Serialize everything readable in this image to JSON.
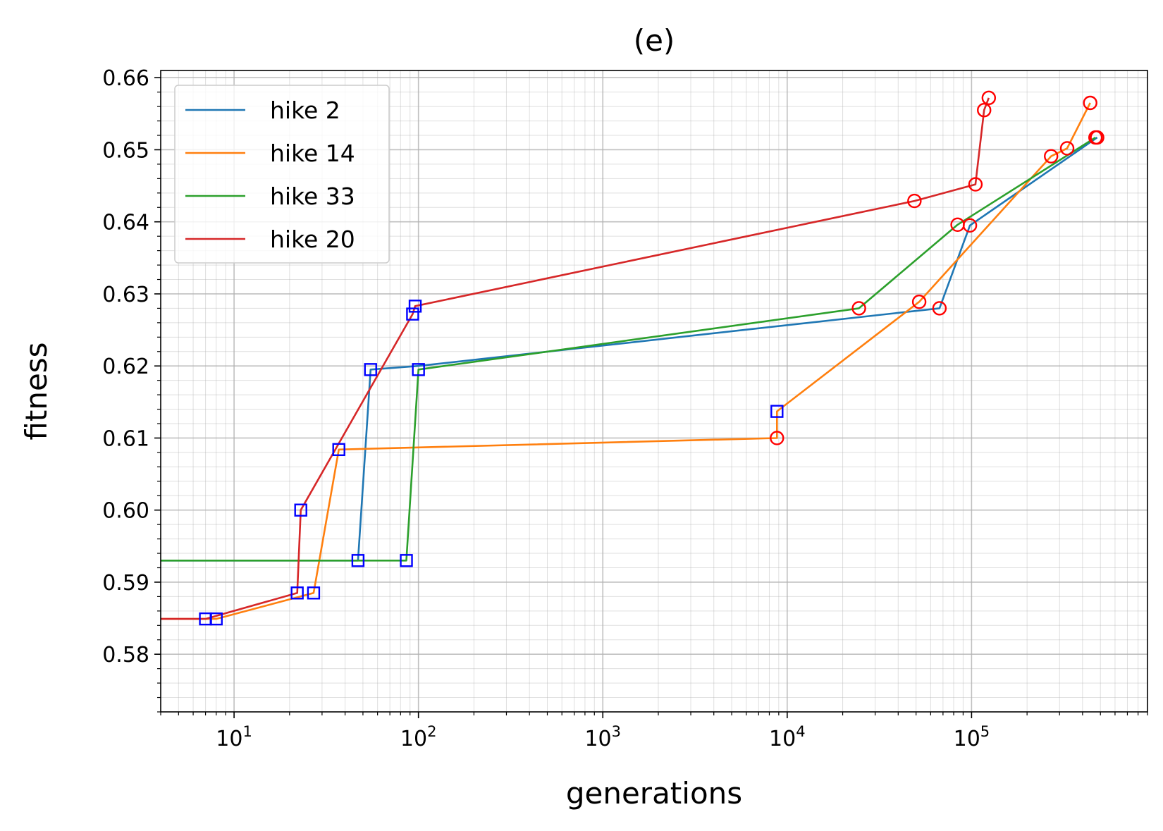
{
  "chart_data": {
    "type": "line",
    "title": "(e)",
    "xlabel": "generations",
    "ylabel": "fitness",
    "xscale": "log",
    "xlim": [
      4,
      900000
    ],
    "ylim": [
      0.572,
      0.661
    ],
    "grid": true,
    "legend_position": "top-left",
    "x_tick_labels": [
      {
        "value": 10,
        "base": "10",
        "exp": "1"
      },
      {
        "value": 100,
        "base": "10",
        "exp": "2"
      },
      {
        "value": 1000,
        "base": "10",
        "exp": "3"
      },
      {
        "value": 10000,
        "base": "10",
        "exp": "4"
      },
      {
        "value": 100000,
        "base": "10",
        "exp": "5"
      }
    ],
    "y_ticks": [
      0.58,
      0.59,
      0.6,
      0.61,
      0.62,
      0.63,
      0.64,
      0.65,
      0.66
    ],
    "y_tick_labels": [
      "0.58",
      "0.59",
      "0.60",
      "0.61",
      "0.62",
      "0.63",
      "0.64",
      "0.65",
      "0.66"
    ],
    "marker_colors": {
      "square": "#0000ff",
      "circle": "#ff0000"
    },
    "series": [
      {
        "name": "hike 2",
        "color": "#1f77b4",
        "start_fitness": 0.593,
        "points": [
          {
            "x": 47,
            "y": 0.593,
            "m": "square"
          },
          {
            "x": 55,
            "y": 0.6195,
            "m": "square"
          },
          {
            "x": 100,
            "y": 0.62,
            "m": "none"
          },
          {
            "x": 67000,
            "y": 0.628,
            "m": "circle"
          },
          {
            "x": 98000,
            "y": 0.6395,
            "m": "circle"
          },
          {
            "x": 480000,
            "y": 0.6517,
            "m": "circle"
          }
        ]
      },
      {
        "name": "hike 14",
        "color": "#ff7f0e",
        "start_fitness": 0.5849,
        "points": [
          {
            "x": 8,
            "y": 0.5849,
            "m": "square"
          },
          {
            "x": 27,
            "y": 0.5885,
            "m": "square"
          },
          {
            "x": 37,
            "y": 0.6084,
            "m": "square"
          },
          {
            "x": 8800,
            "y": 0.61,
            "m": "circle"
          },
          {
            "x": 8800,
            "y": 0.6137,
            "m": "square"
          },
          {
            "x": 52000,
            "y": 0.6289,
            "m": "circle"
          },
          {
            "x": 270000,
            "y": 0.6491,
            "m": "circle"
          },
          {
            "x": 330000,
            "y": 0.6502,
            "m": "circle"
          },
          {
            "x": 440000,
            "y": 0.6565,
            "m": "circle"
          }
        ]
      },
      {
        "name": "hike 33",
        "color": "#2ca02c",
        "start_fitness": 0.593,
        "points": [
          {
            "x": 86,
            "y": 0.593,
            "m": "square"
          },
          {
            "x": 100,
            "y": 0.6195,
            "m": "square"
          },
          {
            "x": 24500,
            "y": 0.628,
            "m": "circle"
          },
          {
            "x": 84000,
            "y": 0.6396,
            "m": "circle"
          },
          {
            "x": 470000,
            "y": 0.6517,
            "m": "circle"
          }
        ]
      },
      {
        "name": "hike 20",
        "color": "#d62728",
        "start_fitness": 0.5849,
        "points": [
          {
            "x": 7,
            "y": 0.5849,
            "m": "square"
          },
          {
            "x": 22,
            "y": 0.5885,
            "m": "square"
          },
          {
            "x": 23,
            "y": 0.6,
            "m": "square"
          },
          {
            "x": 93,
            "y": 0.6272,
            "m": "square"
          },
          {
            "x": 96,
            "y": 0.6283,
            "m": "square"
          },
          {
            "x": 49000,
            "y": 0.6429,
            "m": "circle"
          },
          {
            "x": 105000,
            "y": 0.6452,
            "m": "circle"
          },
          {
            "x": 117000,
            "y": 0.6555,
            "m": "circle"
          },
          {
            "x": 124000,
            "y": 0.6572,
            "m": "circle"
          }
        ]
      }
    ]
  }
}
